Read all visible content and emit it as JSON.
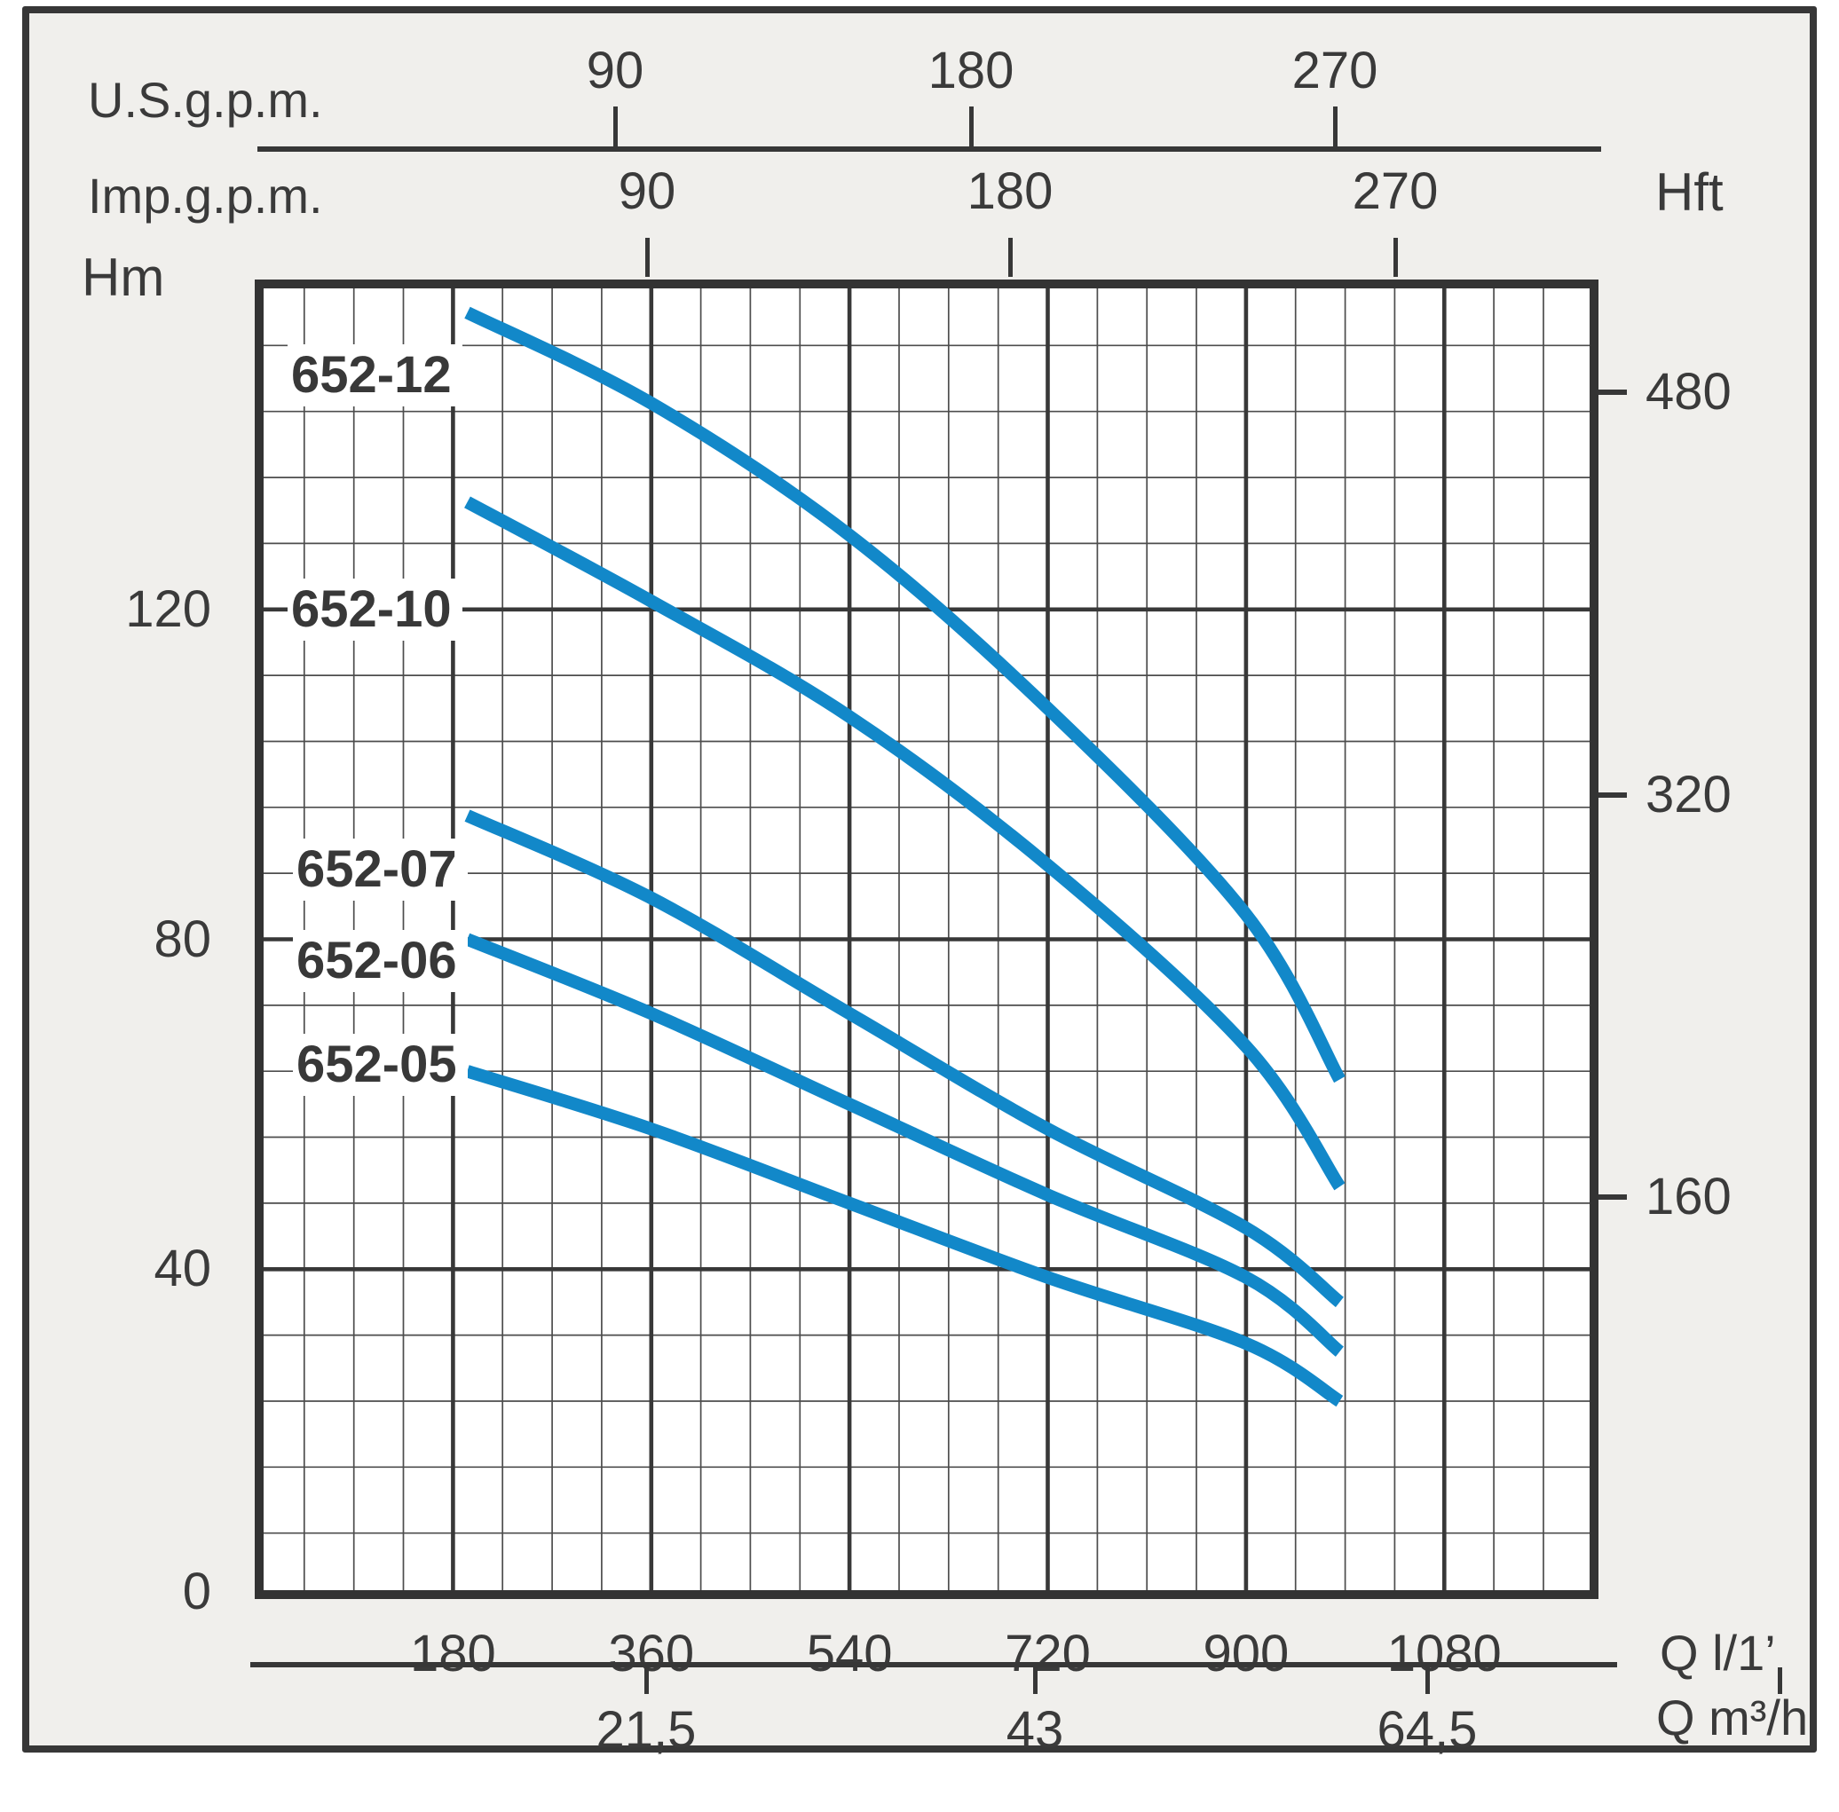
{
  "figure": {
    "background": "#ffffff",
    "frame_fill": "#f0efec",
    "frame_border": "#373737",
    "text_color": "#3a3a3a",
    "grid_minor_color": "#4d4d4d",
    "grid_major_color": "#383838",
    "plot_border_color": "#333333",
    "curve_color": "#1288c9"
  },
  "axes": {
    "us_gpm": {
      "label": "U.S.g.p.m.",
      "ticks": [
        "90",
        "180",
        "270"
      ]
    },
    "imp_gpm": {
      "label": "Imp.g.p.m.",
      "ticks": [
        "90",
        "180",
        "270"
      ]
    },
    "head_m": {
      "label": "Hm",
      "ticks": [
        "0",
        "40",
        "80",
        "120"
      ]
    },
    "head_ft": {
      "label": "Hft",
      "ticks": [
        "160",
        "320",
        "480"
      ]
    },
    "flow_lmin": {
      "label": "Q l/1’",
      "ticks": [
        "180",
        "360",
        "540",
        "720",
        "900",
        "1080"
      ]
    },
    "flow_m3h": {
      "label": "Q m³/h",
      "ticks": [
        "21,5",
        "43",
        "64,5"
      ]
    }
  },
  "chart_data": {
    "type": "line",
    "title": "",
    "xlabel": "Q l/1’",
    "ylabel": "Hm",
    "xlim": [
      0,
      1220
    ],
    "ylim": [
      0,
      160
    ],
    "x_major_step": 180,
    "x_minor_step": 45,
    "y_major_step": 40,
    "y_minor_step": 8,
    "grid": "on",
    "legend_position": "labels-on-plot-left",
    "curve_color": "#1288c9",
    "series": [
      {
        "name": "652-12",
        "points": [
          [
            193,
            156
          ],
          [
            360,
            145
          ],
          [
            540,
            129
          ],
          [
            720,
            108
          ],
          [
            900,
            83
          ],
          [
            985,
            63
          ]
        ]
      },
      {
        "name": "652-10",
        "points": [
          [
            193,
            133
          ],
          [
            360,
            121
          ],
          [
            540,
            107
          ],
          [
            720,
            89
          ],
          [
            900,
            67
          ],
          [
            985,
            50
          ]
        ]
      },
      {
        "name": "652-07",
        "points": [
          [
            193,
            95
          ],
          [
            360,
            85
          ],
          [
            540,
            71
          ],
          [
            720,
            57
          ],
          [
            900,
            45
          ],
          [
            985,
            36
          ]
        ]
      },
      {
        "name": "652-06",
        "points": [
          [
            193,
            80
          ],
          [
            360,
            71
          ],
          [
            540,
            60
          ],
          [
            720,
            49
          ],
          [
            900,
            39
          ],
          [
            985,
            30
          ]
        ]
      },
      {
        "name": "652-05",
        "points": [
          [
            193,
            64
          ],
          [
            360,
            57
          ],
          [
            540,
            48
          ],
          [
            720,
            39
          ],
          [
            900,
            31
          ],
          [
            985,
            24
          ]
        ]
      }
    ],
    "secondary_axes": {
      "us_gpm_ticks": [
        90,
        180,
        270
      ],
      "imp_gpm_ticks": [
        90,
        180,
        270
      ],
      "head_ft_ticks": [
        160,
        320,
        480
      ],
      "flow_m3h_ticks": [
        21.5,
        43,
        64.5
      ]
    }
  }
}
